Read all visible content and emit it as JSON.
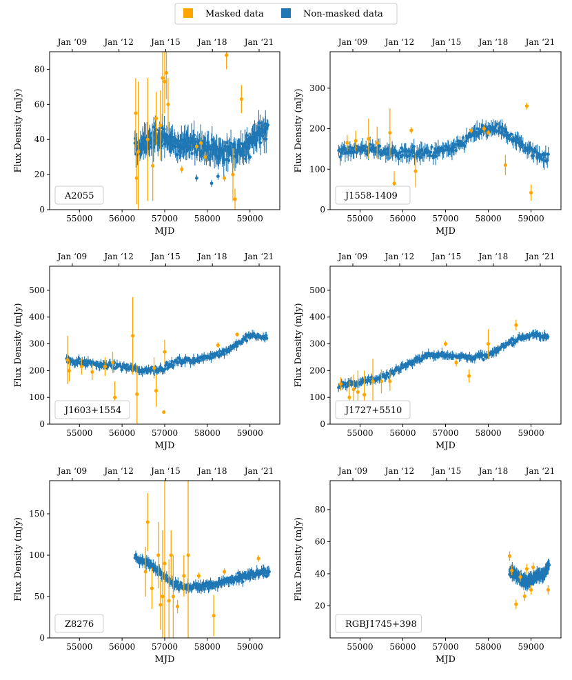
{
  "legend": {
    "masked_label": "Masked data",
    "nonmasked_label": "Non-masked data"
  },
  "colors": {
    "masked": "#ffa500",
    "nonmasked": "#1f77b4"
  },
  "chart_data": {
    "type": "scatter",
    "shared": {
      "xlabel": "MJD",
      "ylabel": "Flux Density (mJy)",
      "xlim": [
        54300,
        59700
      ],
      "xticks": [
        55000,
        56000,
        57000,
        58000,
        59000
      ],
      "top_axis_ticks": [
        {
          "label": "Jan ‘09",
          "mjd": 54832
        },
        {
          "label": "Jan ‘12",
          "mjd": 55927
        },
        {
          "label": "Jan ‘15",
          "mjd": 57023
        },
        {
          "label": "Jan ‘18",
          "mjd": 58119
        },
        {
          "label": "Jan ‘21",
          "mjd": 59215
        }
      ]
    },
    "panels": [
      {
        "source": "A2055",
        "ylim": [
          0,
          90
        ],
        "yticks": [
          0,
          20,
          40,
          60,
          80
        ],
        "nonmasked": {
          "mjd_range": [
            56300,
            59420
          ],
          "trend_mjd": [
            56300,
            56700,
            57000,
            57300,
            57700,
            58000,
            58300,
            58700,
            59000,
            59420
          ],
          "trend_flux": [
            35,
            40,
            42,
            36,
            38,
            35,
            33,
            33,
            38,
            48
          ],
          "scatter": 9,
          "outliers": [
            [
              57750,
              18
            ],
            [
              58100,
              15
            ],
            [
              58250,
              19
            ],
            [
              58500,
              28
            ],
            [
              58900,
              29
            ],
            [
              59000,
              30
            ]
          ]
        },
        "masked": [
          {
            "mjd": 56320,
            "flux": 55,
            "err": 20
          },
          {
            "mjd": 56340,
            "flux": 18,
            "err": 15
          },
          {
            "mjd": 56380,
            "flux": 33,
            "err": 40
          },
          {
            "mjd": 56600,
            "flux": 40,
            "err": 35
          },
          {
            "mjd": 56720,
            "flux": 25,
            "err": 20
          },
          {
            "mjd": 56800,
            "flux": 52,
            "err": 15
          },
          {
            "mjd": 56900,
            "flux": 48,
            "err": 20
          },
          {
            "mjd": 56950,
            "flux": 75,
            "err": 25
          },
          {
            "mjd": 57000,
            "flux": 73,
            "err": 18
          },
          {
            "mjd": 57040,
            "flux": 78,
            "err": 15
          },
          {
            "mjd": 57080,
            "flux": 60,
            "err": 15
          },
          {
            "mjd": 57400,
            "flux": 23,
            "err": 2
          },
          {
            "mjd": 57750,
            "flux": 36,
            "err": 2
          },
          {
            "mjd": 57850,
            "flux": 38,
            "err": 4
          },
          {
            "mjd": 57950,
            "flux": 30,
            "err": 3
          },
          {
            "mjd": 58400,
            "flux": 18,
            "err": 2
          },
          {
            "mjd": 58450,
            "flux": 88,
            "err": 8
          },
          {
            "mjd": 58600,
            "flux": 20,
            "err": 15
          },
          {
            "mjd": 58650,
            "flux": 6,
            "err": 6
          },
          {
            "mjd": 58800,
            "flux": 63,
            "err": 8
          }
        ]
      },
      {
        "source": "J1558-1409",
        "ylim": [
          0,
          390
        ],
        "yticks": [
          0,
          100,
          200,
          300
        ],
        "nonmasked": {
          "mjd_range": [
            54500,
            59400
          ],
          "trend_mjd": [
            54500,
            55000,
            55500,
            56000,
            56500,
            57000,
            57300,
            57600,
            58000,
            58300,
            58600,
            58900,
            59200,
            59400
          ],
          "trend_flux": [
            145,
            150,
            145,
            140,
            140,
            145,
            155,
            185,
            200,
            195,
            175,
            150,
            135,
            130
          ],
          "scatter": 22,
          "outliers": []
        },
        "masked": [
          {
            "mjd": 54700,
            "flux": 165,
            "err": 20
          },
          {
            "mjd": 54900,
            "flux": 170,
            "err": 25
          },
          {
            "mjd": 55200,
            "flux": 175,
            "err": 50
          },
          {
            "mjd": 55400,
            "flux": 165,
            "err": 40
          },
          {
            "mjd": 55700,
            "flux": 190,
            "err": 60
          },
          {
            "mjd": 55800,
            "flux": 65,
            "err": 30
          },
          {
            "mjd": 56200,
            "flux": 196,
            "err": 8
          },
          {
            "mjd": 56300,
            "flux": 95,
            "err": 40
          },
          {
            "mjd": 57600,
            "flux": 195,
            "err": 6
          },
          {
            "mjd": 57900,
            "flux": 200,
            "err": 8
          },
          {
            "mjd": 58000,
            "flux": 190,
            "err": 6
          },
          {
            "mjd": 58400,
            "flux": 110,
            "err": 25
          },
          {
            "mjd": 58900,
            "flux": 256,
            "err": 8
          },
          {
            "mjd": 59000,
            "flux": 42,
            "err": 20
          }
        ]
      },
      {
        "source": "J1603+1554",
        "ylim": [
          0,
          590
        ],
        "yticks": [
          0,
          100,
          200,
          300,
          400,
          500
        ],
        "nonmasked": {
          "mjd_range": [
            54700,
            59400
          ],
          "trend_mjd": [
            54700,
            55300,
            56000,
            56500,
            57000,
            57300,
            57700,
            58000,
            58400,
            58700,
            59000,
            59400
          ],
          "trend_flux": [
            240,
            225,
            215,
            200,
            210,
            235,
            240,
            250,
            270,
            300,
            330,
            325
          ],
          "scatter": 18,
          "outliers": []
        },
        "masked": [
          {
            "mjd": 54720,
            "flux": 240,
            "err": 90
          },
          {
            "mjd": 54760,
            "flux": 200,
            "err": 40
          },
          {
            "mjd": 55050,
            "flux": 215,
            "err": 30
          },
          {
            "mjd": 55300,
            "flux": 195,
            "err": 30
          },
          {
            "mjd": 55600,
            "flux": 215,
            "err": 35
          },
          {
            "mjd": 55780,
            "flux": 230,
            "err": 40
          },
          {
            "mjd": 55830,
            "flux": 100,
            "err": 60
          },
          {
            "mjd": 56250,
            "flux": 330,
            "err": 145
          },
          {
            "mjd": 56350,
            "flux": 112,
            "err": 110
          },
          {
            "mjd": 56750,
            "flux": 210,
            "err": 40
          },
          {
            "mjd": 56800,
            "flux": 125,
            "err": 60
          },
          {
            "mjd": 56980,
            "flux": 45,
            "err": 5
          },
          {
            "mjd": 57000,
            "flux": 270,
            "err": 45
          },
          {
            "mjd": 58250,
            "flux": 295,
            "err": 10
          },
          {
            "mjd": 58700,
            "flux": 335,
            "err": 8
          }
        ]
      },
      {
        "source": "J1727+5510",
        "ylim": [
          0,
          590
        ],
        "yticks": [
          0,
          100,
          200,
          300,
          400,
          500
        ],
        "nonmasked": {
          "mjd_range": [
            54500,
            59400
          ],
          "trend_mjd": [
            54500,
            55000,
            55500,
            56000,
            56500,
            57000,
            57500,
            58000,
            58300,
            58700,
            59000,
            59400
          ],
          "trend_flux": [
            145,
            155,
            175,
            215,
            255,
            260,
            250,
            255,
            285,
            320,
            335,
            325
          ],
          "scatter": 18,
          "outliers": []
        },
        "masked": [
          {
            "mjd": 54550,
            "flux": 150,
            "err": 25
          },
          {
            "mjd": 54750,
            "flux": 100,
            "err": 60
          },
          {
            "mjd": 54850,
            "flux": 130,
            "err": 55
          },
          {
            "mjd": 54950,
            "flux": 120,
            "err": 80
          },
          {
            "mjd": 55100,
            "flux": 110,
            "err": 90
          },
          {
            "mjd": 55300,
            "flux": 160,
            "err": 85
          },
          {
            "mjd": 55500,
            "flux": 160,
            "err": 45
          },
          {
            "mjd": 55700,
            "flux": 160,
            "err": 35
          },
          {
            "mjd": 57000,
            "flux": 300,
            "err": 10
          },
          {
            "mjd": 57250,
            "flux": 230,
            "err": 15
          },
          {
            "mjd": 57550,
            "flux": 180,
            "err": 25
          },
          {
            "mjd": 58000,
            "flux": 300,
            "err": 55
          },
          {
            "mjd": 58650,
            "flux": 370,
            "err": 20
          }
        ]
      },
      {
        "source": "Z8276",
        "ylim": [
          0,
          190
        ],
        "yticks": [
          0,
          50,
          100,
          150
        ],
        "nonmasked": {
          "mjd_range": [
            56300,
            59450
          ],
          "trend_mjd": [
            56300,
            56600,
            56900,
            57200,
            57500,
            57800,
            58200,
            58600,
            59000,
            59450
          ],
          "trend_flux": [
            98,
            90,
            80,
            65,
            62,
            62,
            65,
            70,
            76,
            80
          ],
          "scatter": 7,
          "outliers": []
        },
        "masked": [
          {
            "mjd": 56550,
            "flux": 80,
            "err": 30
          },
          {
            "mjd": 56600,
            "flux": 140,
            "err": 35
          },
          {
            "mjd": 56700,
            "flux": 60,
            "err": 25
          },
          {
            "mjd": 56850,
            "flux": 100,
            "err": 40
          },
          {
            "mjd": 56900,
            "flux": 40,
            "err": 30
          },
          {
            "mjd": 56950,
            "flux": 50,
            "err": 80
          },
          {
            "mjd": 57000,
            "flux": 90,
            "err": 100
          },
          {
            "mjd": 57100,
            "flux": 45,
            "err": 50
          },
          {
            "mjd": 57150,
            "flux": 100,
            "err": 30
          },
          {
            "mjd": 57200,
            "flux": 50,
            "err": 50
          },
          {
            "mjd": 57300,
            "flux": 38,
            "err": 8
          },
          {
            "mjd": 57450,
            "flux": 75,
            "err": 25
          },
          {
            "mjd": 57550,
            "flux": 100,
            "err": 100
          },
          {
            "mjd": 57800,
            "flux": 75,
            "err": 4
          },
          {
            "mjd": 58150,
            "flux": 27,
            "err": 25
          },
          {
            "mjd": 58400,
            "flux": 80,
            "err": 4
          },
          {
            "mjd": 59200,
            "flux": 96,
            "err": 4
          }
        ]
      },
      {
        "source": "RGBJ1745+398",
        "ylim": [
          0,
          98
        ],
        "yticks": [
          20,
          40,
          60,
          80
        ],
        "nonmasked": {
          "mjd_range": [
            58500,
            59420
          ],
          "trend_mjd": [
            58500,
            58700,
            58900,
            59100,
            59300,
            59420
          ],
          "trend_flux": [
            42,
            38,
            35,
            38,
            40,
            45
          ],
          "scatter": 4,
          "outliers": []
        },
        "masked": [
          {
            "mjd": 58500,
            "flux": 51,
            "err": 3
          },
          {
            "mjd": 58550,
            "flux": 42,
            "err": 3
          },
          {
            "mjd": 58650,
            "flux": 21,
            "err": 3
          },
          {
            "mjd": 58750,
            "flux": 38,
            "err": 3
          },
          {
            "mjd": 58850,
            "flux": 26,
            "err": 3
          },
          {
            "mjd": 58900,
            "flux": 43,
            "err": 3
          },
          {
            "mjd": 59000,
            "flux": 30,
            "err": 3
          },
          {
            "mjd": 59050,
            "flux": 44,
            "err": 3
          },
          {
            "mjd": 59400,
            "flux": 30,
            "err": 3
          }
        ]
      }
    ]
  }
}
